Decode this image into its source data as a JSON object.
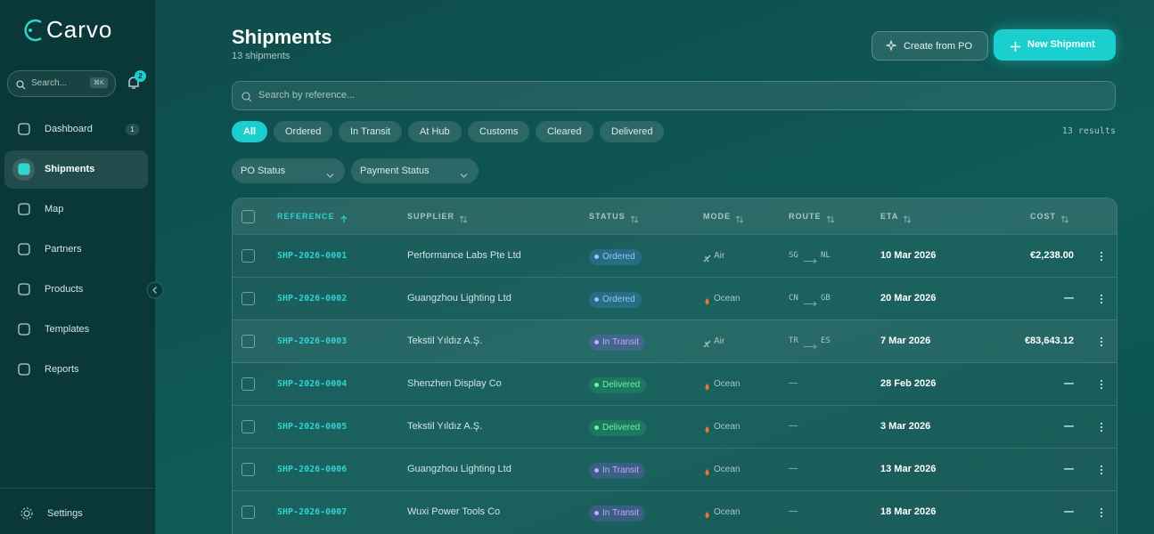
{
  "sidebar": {
    "brand": "Carvo",
    "search_placeholder": "Search...",
    "search_shortcut": "⌘K",
    "notification_count": 2,
    "nav": [
      {
        "label": "Dashboard",
        "badge": 1
      },
      {
        "label": "Shipments"
      },
      {
        "label": "Map"
      },
      {
        "label": "Partners"
      },
      {
        "label": "Products"
      },
      {
        "label": "Templates"
      },
      {
        "label": "Reports"
      }
    ],
    "active": "Shipments",
    "settings": "Settings"
  },
  "header": {
    "title": "Shipments",
    "subtitle": "13 shipments",
    "secondary_action": "Create from PO",
    "primary_action": "New Shipment"
  },
  "search": {
    "placeholder": "Search by reference..."
  },
  "filters": {
    "tabs": [
      "All",
      "Ordered",
      "In Transit",
      "At Hub",
      "Customs",
      "Cleared",
      "Delivered"
    ],
    "active": "All",
    "results": "13 results",
    "dropdowns": [
      "PO Status",
      "Payment Status"
    ]
  },
  "table": {
    "columns": [
      "REFERENCE",
      "SUPPLIER",
      "STATUS",
      "MODE",
      "ROUTE",
      "ETA",
      "COST"
    ],
    "rows": [
      {
        "reference": "SHP-2026-0001",
        "supplier": "Performance Labs Pte Ltd",
        "status": "Ordered",
        "mode": "Air",
        "route": [
          "SG",
          "NL"
        ],
        "eta": "10 Mar 2026",
        "cost": "€2,238.00"
      },
      {
        "reference": "SHP-2026-0002",
        "supplier": "Guangzhou Lighting Ltd",
        "status": "Ordered",
        "mode": "Ocean",
        "route": [
          "CN",
          "GB"
        ],
        "eta": "20 Mar 2026",
        "cost": "—"
      },
      {
        "reference": "SHP-2026-0003",
        "supplier": "Tekstil Yıldız A.Ş.",
        "status": "In Transit",
        "mode": "Air",
        "route": [
          "TR",
          "ES"
        ],
        "eta": "7 Mar 2026",
        "cost": "€83,643.12"
      },
      {
        "reference": "SHP-2026-0004",
        "supplier": "Shenzhen Display Co",
        "status": "Delivered",
        "mode": "Ocean",
        "route": "—",
        "eta": "28 Feb 2026",
        "cost": "—"
      },
      {
        "reference": "SHP-2026-0005",
        "supplier": "Tekstil Yıldız A.Ş.",
        "status": "Delivered",
        "mode": "Ocean",
        "route": "—",
        "eta": "3 Mar 2026",
        "cost": "—"
      },
      {
        "reference": "SHP-2026-0006",
        "supplier": "Guangzhou Lighting Ltd",
        "status": "In Transit",
        "mode": "Ocean",
        "route": "—",
        "eta": "13 Mar 2026",
        "cost": "—"
      },
      {
        "reference": "SHP-2026-0007",
        "supplier": "Wuxi Power Tools Co",
        "status": "In Transit",
        "mode": "Ocean",
        "route": "—",
        "eta": "18 Mar 2026",
        "cost": "—"
      }
    ]
  }
}
